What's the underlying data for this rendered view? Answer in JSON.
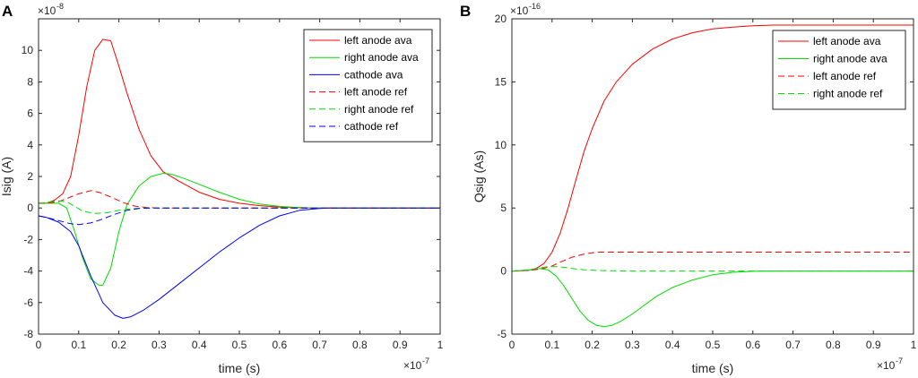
{
  "chart_data": [
    {
      "panel_label": "A",
      "type": "line",
      "xlabel": "time (s)",
      "ylabel": "Isig (A)",
      "x_multiplier": "×10",
      "x_multiplier_exp": "-7",
      "y_multiplier": "×10",
      "y_multiplier_exp": "-8",
      "xlim": [
        0,
        1
      ],
      "ylim": [
        -8,
        12
      ],
      "xticks": [
        0,
        0.1,
        0.2,
        0.3,
        0.4,
        0.5,
        0.6,
        0.7,
        0.8,
        0.9,
        1
      ],
      "xtick_labels": [
        "0",
        "0.1",
        "0.2",
        "0.3",
        "0.4",
        "0.5",
        "0.6",
        "0.7",
        "0.8",
        "0.9",
        "1"
      ],
      "yticks": [
        -8,
        -6,
        -4,
        -2,
        0,
        2,
        4,
        6,
        8,
        10
      ],
      "ytick_labels": [
        "-8",
        "-6",
        "-4",
        "-2",
        "0",
        "2",
        "4",
        "6",
        "8",
        "10"
      ],
      "legend_position": "top-right",
      "series": [
        {
          "name": "left anode ava",
          "color": "#ff0000",
          "dash": "solid",
          "x": [
            0,
            0.02,
            0.04,
            0.06,
            0.08,
            0.1,
            0.12,
            0.14,
            0.16,
            0.18,
            0.2,
            0.22,
            0.25,
            0.28,
            0.31,
            0.35,
            0.4,
            0.45,
            0.5,
            0.55,
            0.6,
            0.65,
            0.7,
            0.8,
            0.9,
            1
          ],
          "y": [
            0.3,
            0.3,
            0.5,
            0.9,
            2.0,
            4.6,
            7.7,
            10.0,
            10.7,
            10.6,
            9.0,
            7.3,
            5.0,
            3.3,
            2.3,
            1.7,
            1.0,
            0.55,
            0.3,
            0.15,
            0.06,
            0.02,
            0,
            0,
            0,
            0
          ]
        },
        {
          "name": "right anode ava",
          "color": "#00dd00",
          "dash": "solid",
          "x": [
            0,
            0.02,
            0.05,
            0.07,
            0.09,
            0.11,
            0.13,
            0.15,
            0.16,
            0.18,
            0.2,
            0.22,
            0.25,
            0.28,
            0.31,
            0.33,
            0.36,
            0.4,
            0.45,
            0.5,
            0.55,
            0.6,
            0.65,
            0.7,
            0.8,
            0.9,
            1
          ],
          "y": [
            0.3,
            0.3,
            0.3,
            0.0,
            -1.5,
            -3.2,
            -4.5,
            -4.9,
            -4.9,
            -3.8,
            -1.5,
            0.2,
            1.4,
            2.0,
            2.2,
            2.15,
            1.9,
            1.5,
            1.0,
            0.55,
            0.25,
            0.1,
            0.03,
            0,
            0,
            0,
            0
          ]
        },
        {
          "name": "cathode ava",
          "color": "#0000ff",
          "dash": "solid",
          "x": [
            0,
            0.02,
            0.05,
            0.08,
            0.1,
            0.13,
            0.16,
            0.19,
            0.21,
            0.23,
            0.26,
            0.3,
            0.35,
            0.4,
            0.45,
            0.5,
            0.55,
            0.6,
            0.65,
            0.7,
            0.72,
            0.8,
            0.9,
            1
          ],
          "y": [
            -0.5,
            -0.6,
            -0.9,
            -1.5,
            -2.4,
            -4.3,
            -6.0,
            -6.8,
            -7.0,
            -6.9,
            -6.5,
            -5.8,
            -4.8,
            -3.8,
            -2.8,
            -1.9,
            -1.1,
            -0.5,
            -0.15,
            -0.03,
            0,
            0,
            0,
            0
          ]
        },
        {
          "name": "left anode ref",
          "color": "#ff0000",
          "dash": "dashed",
          "x": [
            0,
            0.02,
            0.05,
            0.08,
            0.1,
            0.13,
            0.15,
            0.18,
            0.21,
            0.24,
            0.27,
            0.3,
            0.35,
            0.4,
            0.5,
            0.6,
            0.7,
            0.8,
            0.9,
            1
          ],
          "y": [
            0.3,
            0.3,
            0.4,
            0.7,
            0.9,
            1.1,
            1.0,
            0.7,
            0.35,
            0.12,
            0.03,
            0,
            0,
            0,
            0,
            0,
            0,
            0,
            0,
            0
          ]
        },
        {
          "name": "right anode ref",
          "color": "#00dd00",
          "dash": "dashed",
          "x": [
            0,
            0.02,
            0.05,
            0.07,
            0.09,
            0.11,
            0.14,
            0.17,
            0.2,
            0.23,
            0.26,
            0.3,
            0.35,
            0.4,
            0.5,
            0.6,
            0.7,
            0.8,
            0.9,
            1
          ],
          "y": [
            0.3,
            0.35,
            0.45,
            0.4,
            0.1,
            -0.2,
            -0.35,
            -0.3,
            -0.15,
            -0.05,
            0,
            0,
            0,
            0,
            0,
            0,
            0,
            0,
            0,
            0
          ]
        },
        {
          "name": "cathode ref",
          "color": "#0000ff",
          "dash": "dashed",
          "x": [
            0,
            0.02,
            0.05,
            0.08,
            0.1,
            0.13,
            0.16,
            0.19,
            0.22,
            0.25,
            0.28,
            0.3,
            0.35,
            0.4,
            0.5,
            0.6,
            0.7,
            0.8,
            0.9,
            1
          ],
          "y": [
            -0.5,
            -0.6,
            -0.8,
            -1.0,
            -1.05,
            -0.95,
            -0.7,
            -0.4,
            -0.15,
            -0.03,
            0,
            0,
            0,
            0,
            0,
            0,
            0,
            0,
            0,
            0
          ]
        }
      ]
    },
    {
      "panel_label": "B",
      "type": "line",
      "xlabel": "time (s)",
      "ylabel": "Qsig (As)",
      "x_multiplier": "×10",
      "x_multiplier_exp": "-7",
      "y_multiplier": "×10",
      "y_multiplier_exp": "-16",
      "xlim": [
        0,
        1
      ],
      "ylim": [
        -5,
        20
      ],
      "xticks": [
        0,
        0.1,
        0.2,
        0.3,
        0.4,
        0.5,
        0.6,
        0.7,
        0.8,
        0.9,
        1
      ],
      "xtick_labels": [
        "0",
        "0.1",
        "0.2",
        "0.3",
        "0.4",
        "0.5",
        "0.6",
        "0.7",
        "0.8",
        "0.9",
        "1"
      ],
      "yticks": [
        -5,
        0,
        5,
        10,
        15,
        20
      ],
      "ytick_labels": [
        "-5",
        "0",
        "5",
        "10",
        "15",
        "20"
      ],
      "legend_position": "top-right",
      "series": [
        {
          "name": "left anode ava",
          "color": "#ff0000",
          "dash": "solid",
          "x": [
            0,
            0.04,
            0.06,
            0.08,
            0.1,
            0.12,
            0.14,
            0.16,
            0.18,
            0.2,
            0.23,
            0.26,
            0.3,
            0.35,
            0.4,
            0.45,
            0.5,
            0.55,
            0.6,
            0.65,
            0.7,
            0.8,
            0.9,
            1
          ],
          "y": [
            0,
            0.05,
            0.2,
            0.6,
            1.5,
            3.0,
            5.0,
            7.3,
            9.5,
            11.3,
            13.5,
            15.0,
            16.4,
            17.6,
            18.4,
            18.9,
            19.2,
            19.35,
            19.45,
            19.5,
            19.5,
            19.5,
            19.5,
            19.5
          ]
        },
        {
          "name": "right anode ava",
          "color": "#00dd00",
          "dash": "solid",
          "x": [
            0,
            0.04,
            0.07,
            0.09,
            0.11,
            0.13,
            0.15,
            0.17,
            0.19,
            0.21,
            0.23,
            0.25,
            0.27,
            0.3,
            0.33,
            0.36,
            0.4,
            0.45,
            0.5,
            0.55,
            0.6,
            0.63,
            0.7,
            0.8,
            0.9,
            1
          ],
          "y": [
            0,
            0.05,
            0.2,
            0.1,
            -0.4,
            -1.2,
            -2.2,
            -3.2,
            -3.9,
            -4.3,
            -4.4,
            -4.3,
            -4.0,
            -3.4,
            -2.7,
            -2.0,
            -1.3,
            -0.7,
            -0.3,
            -0.1,
            -0.02,
            0,
            0,
            0,
            0,
            0
          ]
        },
        {
          "name": "left anode ref",
          "color": "#ff0000",
          "dash": "dashed",
          "x": [
            0,
            0.04,
            0.07,
            0.1,
            0.12,
            0.15,
            0.18,
            0.2,
            0.22,
            0.25,
            0.3,
            0.4,
            0.5,
            0.6,
            0.7,
            0.8,
            0.9,
            1
          ],
          "y": [
            0,
            0.05,
            0.15,
            0.4,
            0.7,
            1.1,
            1.35,
            1.45,
            1.5,
            1.5,
            1.5,
            1.5,
            1.5,
            1.5,
            1.5,
            1.5,
            1.5,
            1.5
          ]
        },
        {
          "name": "right anode ref",
          "color": "#00dd00",
          "dash": "dashed",
          "x": [
            0,
            0.04,
            0.07,
            0.09,
            0.11,
            0.13,
            0.15,
            0.18,
            0.21,
            0.25,
            0.3,
            0.4,
            0.5,
            0.6,
            0.7,
            0.8,
            0.9,
            1
          ],
          "y": [
            0,
            0.1,
            0.25,
            0.35,
            0.35,
            0.3,
            0.2,
            0.1,
            0.05,
            0.02,
            0,
            0,
            0,
            0,
            0,
            0,
            0,
            0
          ]
        }
      ]
    }
  ]
}
